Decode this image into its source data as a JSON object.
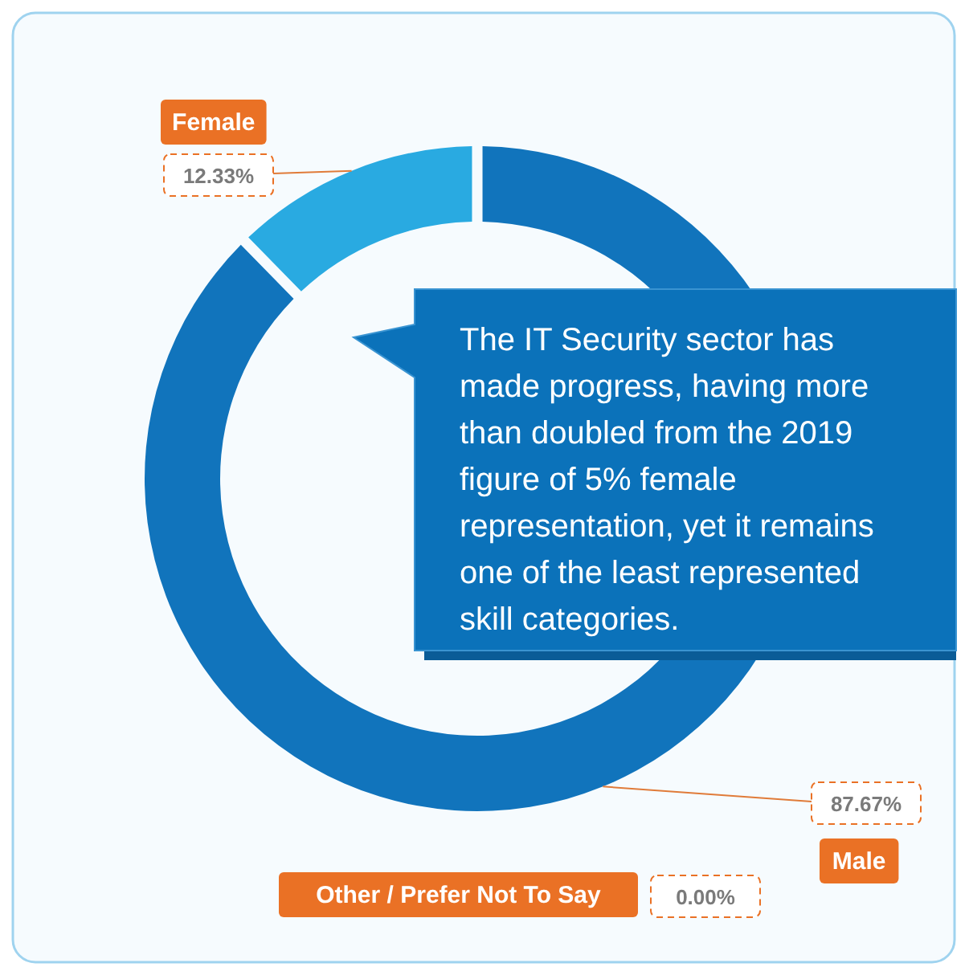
{
  "chart_data": {
    "type": "donut",
    "categories": [
      "Male",
      "Female",
      "Other / Prefer Not To Say"
    ],
    "values": [
      87.67,
      12.33,
      0
    ],
    "colors": [
      "#1174bc",
      "#29aae1",
      "#9aa7b0"
    ],
    "value_labels": [
      "87.67%",
      "12.33%",
      "0.00%"
    ],
    "annotations": [
      "The IT Security sector has made progress, having more than doubled from the 2019 figure of 5% female representation, yet it remains one of the least represented skill categories."
    ]
  }
}
